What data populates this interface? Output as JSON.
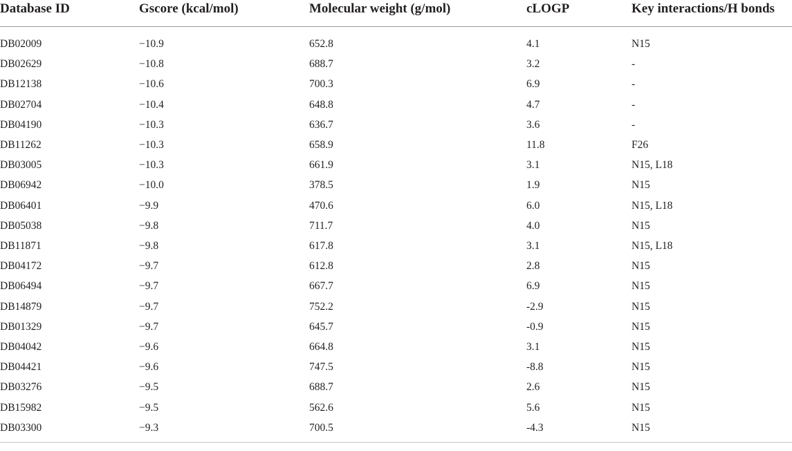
{
  "table": {
    "headers": [
      "Database ID",
      "Gscore (kcal/mol)",
      "Molecular weight (g/mol)",
      "cLOGP",
      "Key interactions/H bonds"
    ],
    "rows": [
      [
        "DB02009",
        "−10.9",
        "652.8",
        "4.1",
        "N15"
      ],
      [
        "DB02629",
        "−10.8",
        "688.7",
        "3.2",
        "-"
      ],
      [
        "DB12138",
        "−10.6",
        "700.3",
        "6.9",
        "-"
      ],
      [
        "DB02704",
        "−10.4",
        "648.8",
        "4.7",
        "-"
      ],
      [
        "DB04190",
        "−10.3",
        "636.7",
        "3.6",
        "-"
      ],
      [
        "DB11262",
        "−10.3",
        "658.9",
        "11.8",
        "F26"
      ],
      [
        "DB03005",
        "−10.3",
        "661.9",
        "3.1",
        "N15, L18"
      ],
      [
        "DB06942",
        "−10.0",
        "378.5",
        "1.9",
        "N15"
      ],
      [
        "DB06401",
        "−9.9",
        "470.6",
        "6.0",
        "N15, L18"
      ],
      [
        "DB05038",
        "−9.8",
        "711.7",
        "4.0",
        "N15"
      ],
      [
        "DB11871",
        "−9.8",
        "617.8",
        "3.1",
        "N15, L18"
      ],
      [
        "DB04172",
        "−9.7",
        "612.8",
        "2.8",
        "N15"
      ],
      [
        "DB06494",
        "−9.7",
        "667.7",
        "6.9",
        "N15"
      ],
      [
        "DB14879",
        "−9.7",
        "752.2",
        "-2.9",
        "N15"
      ],
      [
        "DB01329",
        "−9.7",
        "645.7",
        "-0.9",
        "N15"
      ],
      [
        "DB04042",
        "−9.6",
        "664.8",
        "3.1",
        "N15"
      ],
      [
        "DB04421",
        "−9.6",
        "747.5",
        "-8.8",
        "N15"
      ],
      [
        "DB03276",
        "−9.5",
        "688.7",
        "2.6",
        "N15"
      ],
      [
        "DB15982",
        "−9.5",
        "562.6",
        "5.6",
        "N15"
      ],
      [
        "DB03300",
        "−9.3",
        "700.5",
        "-4.3",
        "N15"
      ]
    ]
  }
}
